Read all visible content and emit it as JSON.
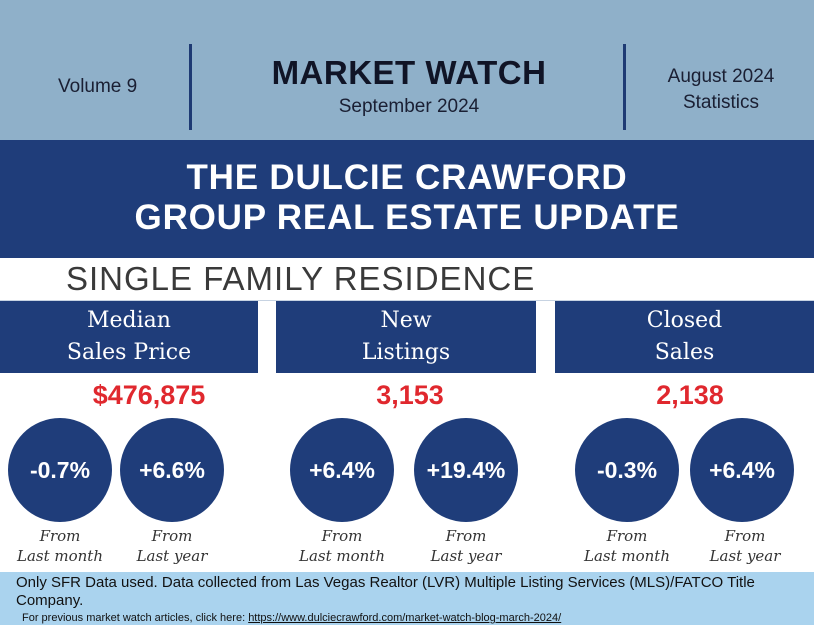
{
  "header": {
    "volume": "Volume 9",
    "title": "MARKET WATCH",
    "date": "September 2024",
    "stats_line1": "August 2024",
    "stats_line2": "Statistics"
  },
  "banner": {
    "line1": "THE DULCIE CRAWFORD",
    "line2": "GROUP REAL ESTATE UPDATE"
  },
  "section_title": "SINGLE FAMILY RESIDENCE",
  "columns": [
    {
      "header_line1": "Median",
      "header_line2": "Sales Price",
      "value": "$476,875",
      "month_change": "-0.7%",
      "year_change": "+6.6%"
    },
    {
      "header_line1": "New",
      "header_line2": "Listings",
      "value": "3,153",
      "month_change": "+6.4%",
      "year_change": "+19.4%"
    },
    {
      "header_line1": "Closed",
      "header_line2": "Sales",
      "value": "2,138",
      "month_change": "-0.3%",
      "year_change": "+6.4%"
    }
  ],
  "labels": {
    "from": "From",
    "last_month": "Last month",
    "last_year": "Last year"
  },
  "footer": {
    "note": "Only SFR Data used. Data collected from Las Vegas Realtor (LVR) Multiple Listing Services (MLS)/FATCO Title Company.",
    "link_prefix": "For previous market watch articles, click here: ",
    "link_url": "https://www.dulciecrawford.com/market-watch-blog-march-2024/"
  },
  "colors": {
    "navy": "#1f3d7a",
    "top_band": "#8fb0c9",
    "accent_red": "#e0282e",
    "footer_band": "#aad3ee"
  }
}
